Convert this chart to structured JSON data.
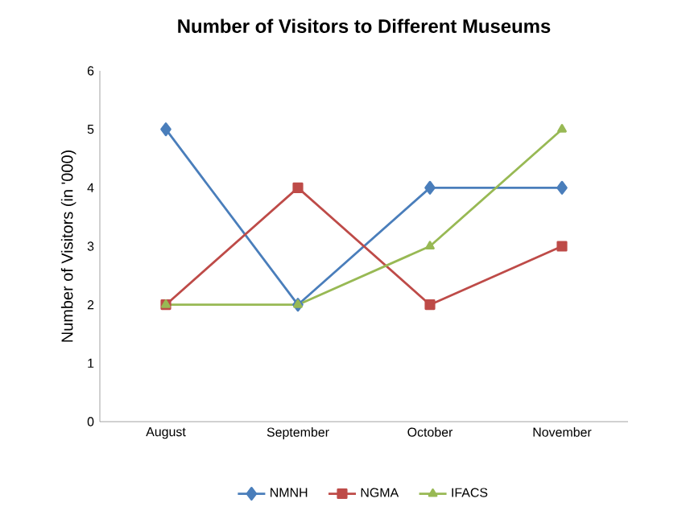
{
  "chart_data": {
    "type": "line",
    "title": "Number of Visitors to Different Museums",
    "ylabel": "Number of Visitors (in '000)",
    "categories": [
      "August",
      "September",
      "October",
      "November"
    ],
    "series": [
      {
        "name": "NMNH",
        "color": "#4a7ebb",
        "marker": "diamond",
        "values": [
          5,
          2,
          4,
          4
        ]
      },
      {
        "name": "NGMA",
        "color": "#be4b48",
        "marker": "square",
        "values": [
          2,
          4,
          2,
          3
        ]
      },
      {
        "name": "IFACS",
        "color": "#98b954",
        "marker": "triangle",
        "values": [
          2,
          2,
          3,
          5
        ]
      }
    ],
    "ylim": [
      0,
      6
    ],
    "yticks": [
      0,
      1,
      2,
      3,
      4,
      5,
      6
    ],
    "grid": false,
    "legend": "bottom"
  }
}
